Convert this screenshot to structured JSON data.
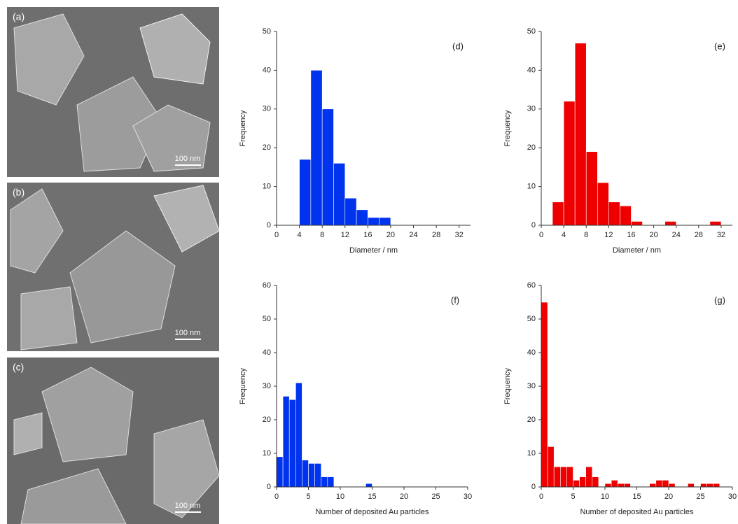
{
  "images": [
    {
      "label": "(a)",
      "scale": "100 nm"
    },
    {
      "label": "(b)",
      "scale": "100 nm"
    },
    {
      "label": "(c)",
      "scale": "100 nm"
    }
  ],
  "chart_data": [
    {
      "type": "histogram",
      "annotation": "(d)",
      "xlabel": "Diameter / nm",
      "ylabel": "Frequency",
      "color": "#0033ee",
      "bins": [
        4,
        6,
        8,
        10,
        12,
        14,
        16,
        18,
        20
      ],
      "values": [
        17,
        40,
        30,
        16,
        7,
        4,
        2,
        2
      ],
      "xlim": [
        0,
        34
      ],
      "ylim": [
        0,
        50
      ],
      "xticks": [
        0,
        4,
        8,
        12,
        16,
        20,
        24,
        28,
        32
      ],
      "yticks": [
        0,
        10,
        20,
        30,
        40,
        50
      ]
    },
    {
      "type": "histogram",
      "annotation": "(e)",
      "xlabel": "Diameter / nm",
      "ylabel": "Frequency",
      "color": "#ee0000",
      "bins": [
        2,
        4,
        6,
        8,
        10,
        12,
        14,
        16,
        18,
        20,
        22,
        24,
        26,
        28,
        30,
        32
      ],
      "values": [
        6,
        32,
        47,
        19,
        11,
        6,
        5,
        1,
        0,
        0,
        1,
        0,
        0,
        0,
        1
      ],
      "xlim": [
        0,
        34
      ],
      "ylim": [
        0,
        50
      ],
      "xticks": [
        0,
        4,
        8,
        12,
        16,
        20,
        24,
        28,
        32
      ],
      "yticks": [
        0,
        10,
        20,
        30,
        40,
        50
      ]
    },
    {
      "type": "histogram",
      "annotation": "(f)",
      "xlabel": "Number of deposited Au particles",
      "ylabel": "Frequency",
      "color": "#0033ee",
      "bins": [
        0,
        1,
        2,
        3,
        4,
        5,
        6,
        7,
        8,
        9,
        10,
        11,
        12,
        13,
        14,
        15
      ],
      "values": [
        9,
        27,
        26,
        31,
        8,
        7,
        7,
        3,
        3,
        0,
        0,
        0,
        0,
        0,
        1
      ],
      "xlim": [
        0,
        30
      ],
      "ylim": [
        0,
        60
      ],
      "xticks": [
        0,
        5,
        10,
        15,
        20,
        25,
        30
      ],
      "yticks": [
        0,
        10,
        20,
        30,
        40,
        50,
        60
      ]
    },
    {
      "type": "histogram",
      "annotation": "(g)",
      "xlabel": "Number of deposited Au particles",
      "ylabel": "Frequency",
      "color": "#ee0000",
      "bins": [
        0,
        1,
        2,
        3,
        4,
        5,
        6,
        7,
        8,
        9,
        10,
        11,
        12,
        13,
        14,
        15,
        16,
        17,
        18,
        19,
        20,
        21,
        22,
        23,
        24,
        25,
        26,
        27,
        28
      ],
      "values": [
        55,
        12,
        6,
        6,
        6,
        2,
        3,
        6,
        3,
        0,
        1,
        2,
        1,
        1,
        0,
        0,
        0,
        1,
        2,
        2,
        1,
        0,
        0,
        1,
        0,
        1,
        1,
        1
      ],
      "xlim": [
        0,
        30
      ],
      "ylim": [
        0,
        60
      ],
      "xticks": [
        0,
        5,
        10,
        15,
        20,
        25,
        30
      ],
      "yticks": [
        0,
        10,
        20,
        30,
        40,
        50,
        60
      ]
    }
  ]
}
